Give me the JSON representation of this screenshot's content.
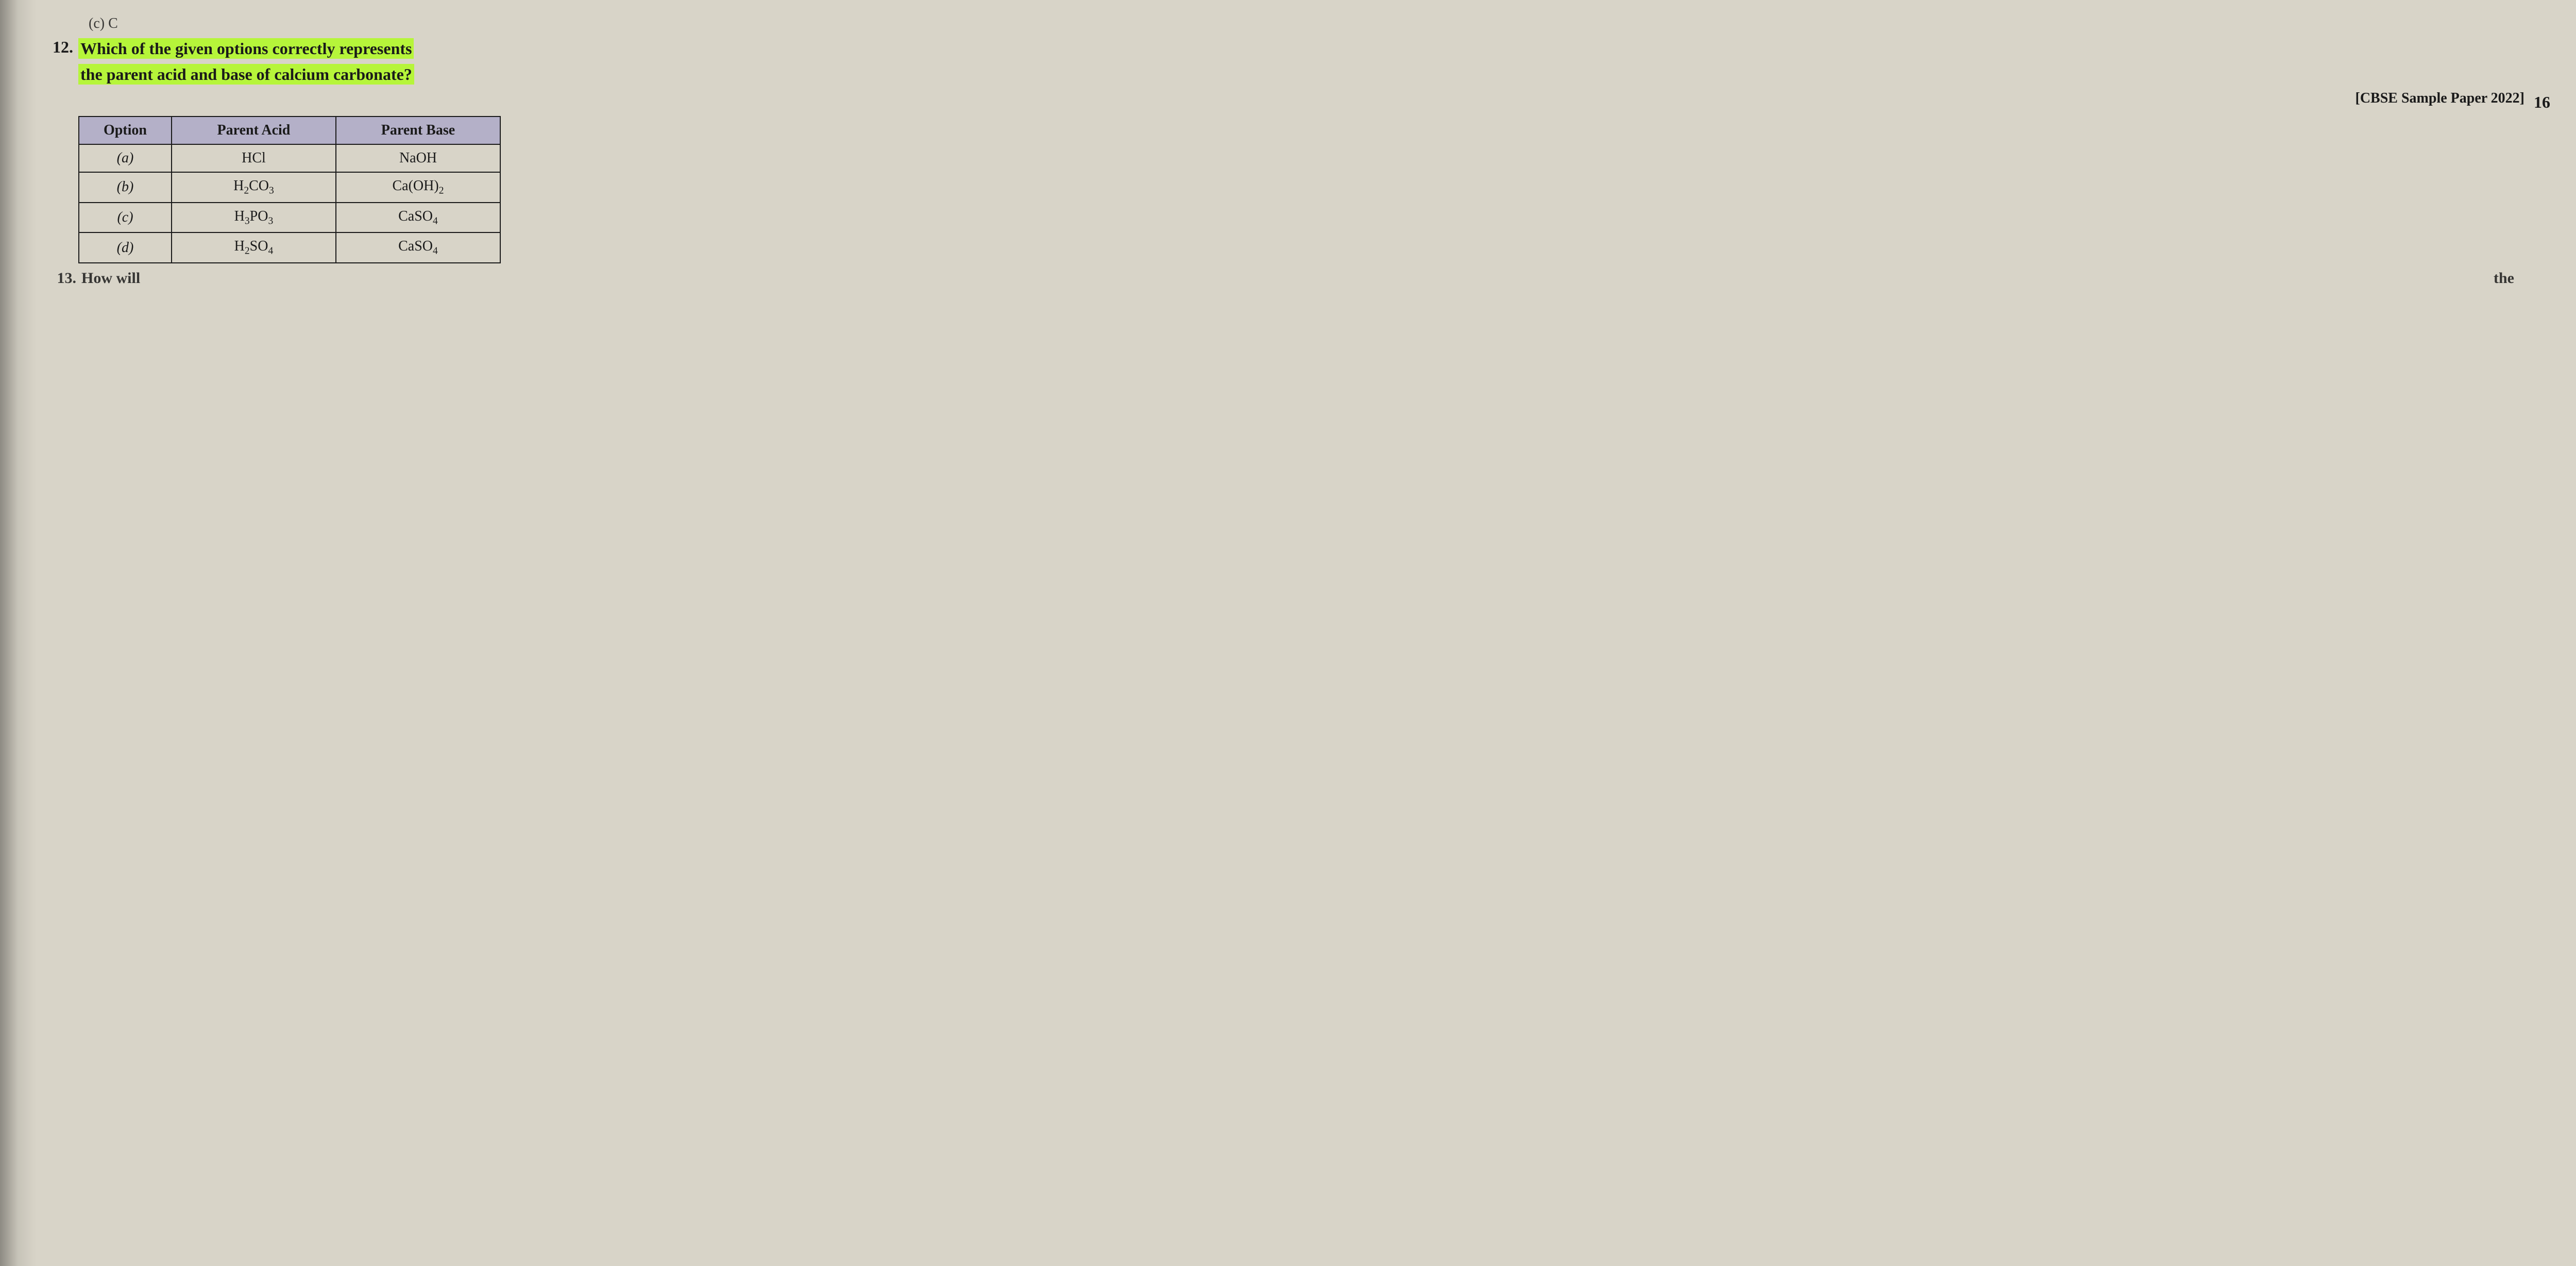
{
  "prev_fragment": "(c) C",
  "question": {
    "number": "12.",
    "text_line1": "Which of the given options correctly represents",
    "text_line2": "the parent acid and base of calcium carbonate?",
    "source": "[CBSE Sample Paper 2022]"
  },
  "margin_number": "16",
  "table": {
    "headers": {
      "option": "Option",
      "acid": "Parent Acid",
      "base": "Parent Base"
    },
    "rows": [
      {
        "opt": "(a)",
        "acid_html": "HCl",
        "base_html": "NaOH"
      },
      {
        "opt": "(b)",
        "acid_html": "H<sub>2</sub>CO<sub>3</sub>",
        "base_html": "Ca(OH)<sub>2</sub>"
      },
      {
        "opt": "(c)",
        "acid_html": "H<sub>3</sub>PO<sub>3</sub>",
        "base_html": "CaSO<sub>4</sub>"
      },
      {
        "opt": "(d)",
        "acid_html": "H<sub>2</sub>SO<sub>4</sub>",
        "base_html": "CaSO<sub>4</sub>"
      }
    ],
    "header_bg": "#b4b0c8",
    "border_color": "#1a1a1a",
    "cell_fontsize": 28
  },
  "next_question": {
    "number": "13.",
    "text_left": "How will",
    "text_right": "the"
  },
  "colors": {
    "page_bg": "#d8d4c8",
    "highlight": "#b6f53a",
    "text": "#1a1a1a"
  }
}
